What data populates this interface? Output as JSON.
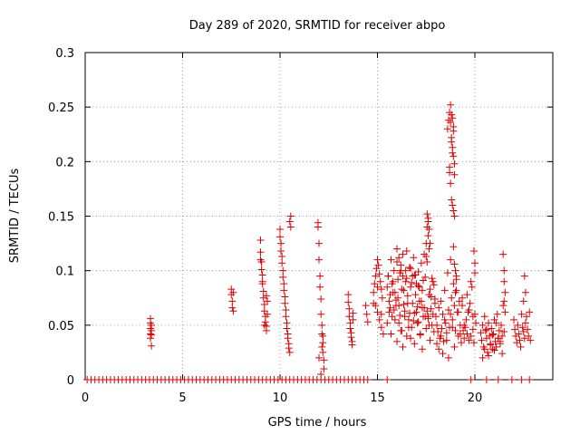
{
  "chart_data": {
    "type": "scatter",
    "title": "Day 289 of 2020, SRMTID for receiver abpo",
    "xlabel": "GPS time / hours",
    "ylabel": "SRMTID / TECUs",
    "xlim": [
      0,
      24
    ],
    "ylim": [
      0,
      0.3
    ],
    "xticks": [
      0,
      5,
      10,
      15,
      20
    ],
    "yticks": [
      0,
      0.05,
      0.1,
      0.15,
      0.2,
      0.25,
      0.3
    ],
    "xtick_labels": [
      "0",
      "5",
      "10",
      "15",
      "20"
    ],
    "ytick_labels": [
      "0",
      "0.05",
      "0.1",
      "0.15",
      "0.2",
      "0.25",
      "0.3"
    ],
    "grid": true,
    "marker": "+",
    "color": "#e00000",
    "series": [
      {
        "name": "SRMTID",
        "x": [
          0.1,
          0.3,
          0.5,
          0.7,
          0.9,
          1.1,
          1.3,
          1.5,
          1.7,
          1.9,
          2.1,
          2.3,
          2.5,
          2.7,
          2.9,
          3.1,
          3.3,
          3.5,
          3.7,
          3.9,
          4.1,
          4.3,
          4.5,
          4.7,
          4.9,
          5.1,
          5.3,
          5.5,
          5.7,
          5.9,
          6.1,
          6.3,
          6.5,
          6.7,
          6.9,
          7.1,
          7.3,
          7.5,
          7.7,
          7.9,
          8.1,
          8.3,
          8.5,
          8.7,
          8.9,
          9.1,
          9.3,
          9.5,
          9.7,
          9.9,
          10.1,
          10.3,
          10.5,
          10.7,
          10.9,
          11.1,
          11.3,
          11.5,
          11.7,
          11.9,
          12.1,
          12.3,
          12.5,
          12.7,
          12.9,
          13.1,
          13.3,
          13.5,
          13.7,
          13.9,
          14.1,
          14.3,
          14.5,
          15.5,
          19.8,
          20.6,
          21.2,
          21.9,
          22.4,
          22.8,
          3.35,
          3.35,
          3.35,
          3.35,
          3.35,
          3.4,
          3.4,
          3.4,
          3.4,
          7.5,
          7.5,
          7.55,
          7.55,
          7.6,
          7.6,
          9.0,
          9.0,
          9.05,
          9.05,
          9.1,
          9.1,
          9.15,
          9.15,
          9.2,
          9.2,
          9.25,
          9.25,
          9.3,
          9.3,
          9.35,
          9.35,
          9.0,
          9.1,
          9.2,
          9.3,
          10.0,
          10.0,
          10.05,
          10.05,
          10.1,
          10.1,
          10.15,
          10.15,
          10.2,
          10.2,
          10.25,
          10.25,
          10.3,
          10.3,
          10.35,
          10.35,
          10.4,
          10.4,
          10.45,
          10.45,
          10.5,
          10.5,
          10.55,
          10.55,
          11.95,
          11.95,
          12.0,
          12.0,
          12.05,
          12.05,
          12.1,
          12.1,
          12.15,
          12.15,
          12.2,
          12.2,
          12.25,
          12.25,
          12.1,
          12.15,
          12.2,
          12.0,
          13.5,
          13.5,
          13.55,
          13.55,
          13.6,
          13.6,
          13.65,
          13.65,
          13.7,
          13.7,
          13.75,
          13.75,
          14.4,
          14.45,
          14.5,
          14.8,
          14.85,
          14.9,
          14.95,
          15.0,
          15.05,
          15.1,
          15.15,
          15.2,
          15.25,
          14.9,
          15.0,
          15.1,
          15.2,
          15.3,
          14.8,
          15.0,
          15.2,
          15.5,
          15.55,
          15.6,
          15.65,
          15.7,
          15.75,
          15.8,
          15.85,
          15.9,
          15.95,
          16.0,
          16.05,
          16.1,
          16.15,
          16.2,
          16.25,
          16.3,
          16.35,
          16.4,
          16.45,
          16.5,
          16.55,
          16.6,
          16.65,
          16.7,
          16.75,
          16.8,
          16.85,
          16.9,
          16.95,
          17.0,
          17.05,
          17.1,
          17.15,
          17.2,
          17.25,
          17.3,
          17.35,
          17.4,
          17.45,
          17.5,
          17.55,
          17.6,
          17.65,
          17.7,
          17.75,
          17.8,
          17.85,
          17.9,
          17.95,
          15.5,
          15.6,
          15.7,
          15.8,
          15.9,
          16.0,
          16.1,
          16.2,
          16.3,
          16.4,
          16.5,
          16.6,
          16.7,
          16.8,
          16.9,
          17.0,
          17.1,
          17.2,
          17.3,
          17.4,
          17.5,
          17.6,
          17.7,
          17.8,
          17.9,
          15.55,
          15.65,
          15.75,
          15.85,
          15.95,
          16.05,
          16.15,
          16.25,
          16.35,
          16.45,
          16.55,
          16.65,
          16.75,
          16.85,
          16.95,
          17.05,
          17.15,
          17.25,
          17.35,
          17.45,
          17.55,
          17.65,
          17.75,
          17.85,
          17.95,
          16.0,
          16.1,
          16.2,
          16.3,
          16.5,
          16.7,
          16.9,
          17.1,
          17.3,
          17.5,
          17.6,
          17.7,
          17.55,
          17.6,
          17.65,
          17.55,
          17.6,
          17.65,
          18.0,
          18.05,
          18.1,
          18.15,
          18.2,
          18.25,
          18.3,
          18.35,
          18.4,
          18.45,
          18.5,
          18.55,
          18.6,
          18.65,
          18.7,
          18.75,
          18.8,
          18.85,
          18.9,
          18.95,
          19.0,
          19.05,
          19.1,
          19.15,
          19.2,
          19.25,
          19.3,
          19.35,
          19.4,
          19.45,
          18.05,
          18.15,
          18.25,
          18.35,
          18.45,
          18.55,
          18.65,
          18.75,
          18.85,
          18.95,
          19.05,
          19.15,
          19.25,
          19.35,
          19.45,
          18.6,
          18.65,
          18.7,
          18.75,
          18.8,
          18.85,
          18.9,
          18.95,
          18.7,
          18.75,
          18.8,
          18.85,
          18.9,
          18.7,
          18.75,
          18.8,
          18.85,
          18.9,
          18.95,
          18.8,
          18.9,
          18.85,
          18.95,
          19.0,
          18.9,
          18.95,
          19.0,
          19.05,
          19.5,
          19.55,
          19.6,
          19.65,
          19.7,
          19.75,
          19.8,
          19.85,
          19.9,
          19.95,
          20.0,
          20.05,
          19.6,
          19.7,
          19.8,
          19.9,
          20.0,
          19.95,
          20.0,
          20.3,
          20.35,
          20.4,
          20.45,
          20.5,
          20.55,
          20.6,
          20.65,
          20.7,
          20.75,
          20.8,
          20.85,
          20.9,
          20.95,
          21.0,
          21.05,
          21.1,
          21.15,
          21.2,
          21.25,
          21.3,
          21.35,
          21.4,
          21.45,
          21.5,
          21.55,
          20.4,
          20.5,
          20.6,
          20.7,
          20.8,
          20.9,
          21.0,
          21.1,
          21.2,
          21.3,
          21.4,
          21.5,
          21.45,
          21.5,
          21.55,
          21.5,
          22.0,
          22.05,
          22.1,
          22.15,
          22.2,
          22.25,
          22.3,
          22.35,
          22.4,
          22.45,
          22.5,
          22.55,
          22.6,
          22.65,
          22.7,
          22.75,
          22.8,
          22.85,
          22.5,
          22.6,
          22.55
        ],
        "y": [
          0,
          0,
          0,
          0,
          0,
          0,
          0,
          0,
          0,
          0,
          0,
          0,
          0,
          0,
          0,
          0,
          0,
          0,
          0,
          0,
          0,
          0,
          0,
          0,
          0,
          0,
          0,
          0,
          0,
          0,
          0,
          0,
          0,
          0,
          0,
          0,
          0,
          0,
          0,
          0,
          0,
          0,
          0,
          0,
          0,
          0,
          0,
          0,
          0,
          0,
          0,
          0,
          0,
          0,
          0,
          0,
          0,
          0,
          0,
          0,
          0,
          0,
          0,
          0,
          0,
          0,
          0,
          0,
          0,
          0,
          0,
          0,
          0,
          0,
          0,
          0,
          0,
          0,
          0,
          0,
          0.056,
          0.052,
          0.047,
          0.042,
          0.038,
          0.031,
          0.045,
          0.05,
          0.041,
          0.083,
          0.078,
          0.072,
          0.066,
          0.063,
          0.08,
          0.128,
          0.117,
          0.108,
          0.101,
          0.096,
          0.088,
          0.081,
          0.075,
          0.069,
          0.063,
          0.058,
          0.053,
          0.049,
          0.045,
          0.06,
          0.072,
          0.11,
          0.09,
          0.05,
          0.077,
          0.138,
          0.131,
          0.125,
          0.118,
          0.113,
          0.107,
          0.1,
          0.094,
          0.088,
          0.082,
          0.076,
          0.07,
          0.064,
          0.058,
          0.052,
          0.047,
          0.042,
          0.038,
          0.033,
          0.029,
          0.025,
          0.145,
          0.15,
          0.14,
          0.144,
          0.14,
          0.125,
          0.11,
          0.095,
          0.085,
          0.074,
          0.06,
          0.05,
          0.042,
          0.034,
          0.025,
          0.018,
          0.01,
          0.005,
          0.03,
          0.04,
          0.02,
          0.078,
          0.071,
          0.065,
          0.058,
          0.052,
          0.047,
          0.043,
          0.039,
          0.035,
          0.032,
          0.055,
          0.061,
          0.068,
          0.06,
          0.053,
          0.08,
          0.088,
          0.095,
          0.102,
          0.11,
          0.105,
          0.097,
          0.09,
          0.083,
          0.075,
          0.068,
          0.062,
          0.055,
          0.048,
          0.042,
          0.07,
          0.085,
          0.06,
          0.085,
          0.095,
          0.072,
          0.066,
          0.11,
          0.058,
          0.09,
          0.1,
          0.08,
          0.068,
          0.12,
          0.075,
          0.052,
          0.098,
          0.105,
          0.045,
          0.115,
          0.082,
          0.063,
          0.09,
          0.118,
          0.07,
          0.055,
          0.103,
          0.085,
          0.048,
          0.095,
          0.112,
          0.061,
          0.078,
          0.088,
          0.052,
          0.099,
          0.072,
          0.042,
          0.107,
          0.066,
          0.091,
          0.115,
          0.058,
          0.125,
          0.14,
          0.148,
          0.12,
          0.083,
          0.076,
          0.093,
          0.06,
          0.087,
          0.07,
          0.052,
          0.062,
          0.042,
          0.08,
          0.055,
          0.035,
          0.068,
          0.045,
          0.03,
          0.058,
          0.04,
          0.048,
          0.038,
          0.07,
          0.033,
          0.062,
          0.053,
          0.041,
          0.028,
          0.066,
          0.047,
          0.058,
          0.036,
          0.05,
          0.044,
          0.095,
          0.078,
          0.088,
          0.064,
          0.073,
          0.092,
          0.059,
          0.083,
          0.069,
          0.1,
          0.077,
          0.061,
          0.089,
          0.054,
          0.096,
          0.067,
          0.085,
          0.072,
          0.058,
          0.094,
          0.108,
          0.078,
          0.065,
          0.09,
          0.074,
          0.108,
          0.112,
          0.1,
          0.095,
          0.093,
          0.102,
          0.096,
          0.086,
          0.082,
          0.113,
          0.132,
          0.125,
          0.152,
          0.145,
          0.138,
          0.063,
          0.056,
          0.05,
          0.058,
          0.05,
          0.044,
          0.066,
          0.038,
          0.072,
          0.047,
          0.06,
          0.035,
          0.082,
          0.052,
          0.043,
          0.098,
          0.064,
          0.048,
          0.11,
          0.075,
          0.055,
          0.088,
          0.068,
          0.045,
          0.095,
          0.062,
          0.04,
          0.072,
          0.05,
          0.034,
          0.068,
          0.045,
          0.038,
          0.033,
          0.028,
          0.04,
          0.024,
          0.055,
          0.036,
          0.02,
          0.06,
          0.048,
          0.03,
          0.082,
          0.062,
          0.042,
          0.075,
          0.05,
          0.23,
          0.238,
          0.245,
          0.252,
          0.222,
          0.213,
          0.205,
          0.198,
          0.19,
          0.236,
          0.243,
          0.24,
          0.228,
          0.195,
          0.18,
          0.165,
          0.16,
          0.155,
          0.15,
          0.218,
          0.232,
          0.208,
          0.188,
          0.1,
          0.122,
          0.106,
          0.08,
          0.092,
          0.048,
          0.055,
          0.042,
          0.062,
          0.036,
          0.07,
          0.04,
          0.085,
          0.046,
          0.034,
          0.06,
          0.052,
          0.078,
          0.064,
          0.09,
          0.058,
          0.107,
          0.118,
          0.098,
          0.043,
          0.036,
          0.05,
          0.03,
          0.058,
          0.045,
          0.038,
          0.025,
          0.052,
          0.04,
          0.032,
          0.047,
          0.028,
          0.042,
          0.055,
          0.035,
          0.03,
          0.06,
          0.038,
          0.045,
          0.033,
          0.05,
          0.04,
          0.068,
          0.09,
          0.08,
          0.02,
          0.028,
          0.046,
          0.022,
          0.033,
          0.041,
          0.027,
          0.052,
          0.038,
          0.035,
          0.024,
          0.044,
          0.115,
          0.1,
          0.062,
          0.072,
          0.055,
          0.046,
          0.04,
          0.034,
          0.05,
          0.042,
          0.036,
          0.03,
          0.06,
          0.048,
          0.044,
          0.038,
          0.052,
          0.058,
          0.046,
          0.04,
          0.062,
          0.036,
          0.072,
          0.08,
          0.095
        ]
      }
    ]
  }
}
